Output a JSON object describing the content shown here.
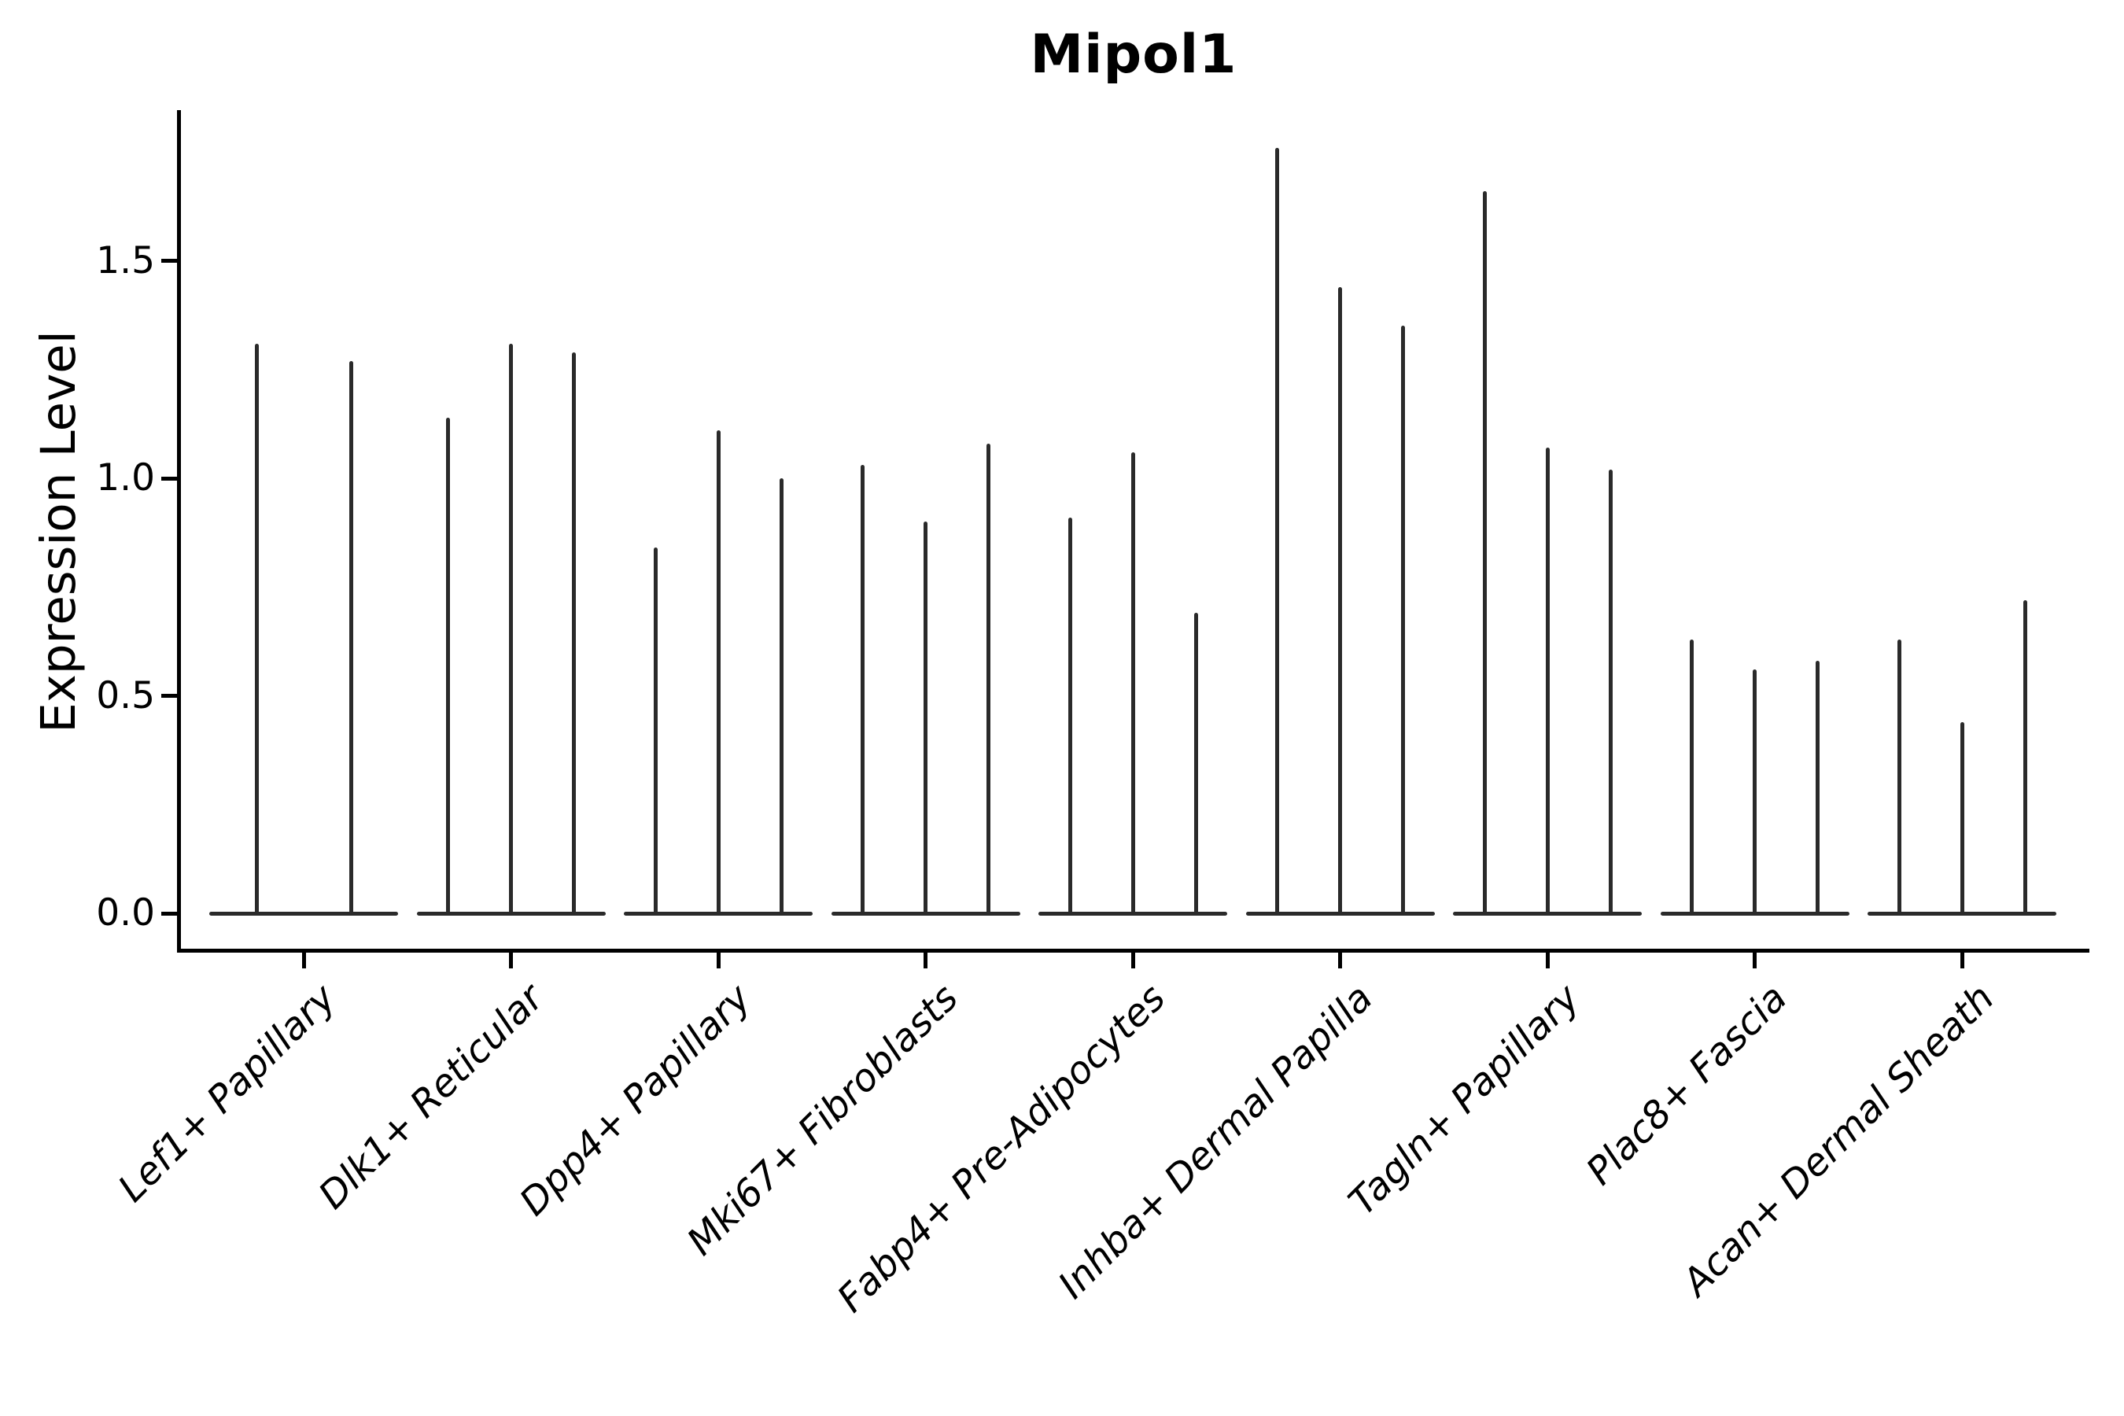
{
  "figure": {
    "title": "Mipol1",
    "y_axis": {
      "label": "Expression Level",
      "tick_labels": [
        "0.0",
        "0.5",
        "1.0",
        "1.5"
      ]
    }
  },
  "colors": {
    "violin": "#2a2a2a",
    "axis": "#000000",
    "text": "#000000",
    "background": "#ffffff"
  },
  "chart_data": {
    "type": "violin",
    "title": "Mipol1",
    "xlabel": "",
    "ylabel": "Expression Level",
    "ylim": [
      0,
      1.85
    ],
    "yticks": [
      0,
      0.5,
      1.0,
      1.5
    ],
    "ytick_labels": [
      "0.0",
      "0.5",
      "1.0",
      "1.5"
    ],
    "grid": false,
    "legend": null,
    "x_tick_rotation": 45,
    "shape_note": "Each violin is collapsed at 0 (flat base) with a thin vertical spike up to its maximum expression value",
    "groups": [
      {
        "label": "Lef1+ Papillary",
        "violin_peaks": [
          1.31,
          1.27
        ]
      },
      {
        "label": "Dlk1+ Reticular",
        "violin_peaks": [
          1.14,
          1.31,
          1.29
        ]
      },
      {
        "label": "Dpp4+ Papillary",
        "violin_peaks": [
          0.84,
          1.11,
          1.0
        ]
      },
      {
        "label": "Mki67+ Fibroblasts",
        "violin_peaks": [
          1.03,
          0.9,
          1.08
        ]
      },
      {
        "label": "Fabp4+ Pre-Adipocytes",
        "violin_peaks": [
          0.91,
          1.06,
          0.69
        ]
      },
      {
        "label": "Inhba+ Dermal Papilla",
        "violin_peaks": [
          1.76,
          1.44,
          1.35
        ]
      },
      {
        "label": "Tagln+ Papillary",
        "violin_peaks": [
          1.66,
          1.07,
          1.02
        ]
      },
      {
        "label": "Plac8+ Fascia",
        "violin_peaks": [
          0.63,
          0.56,
          0.58
        ]
      },
      {
        "label": "Acan+ Dermal Sheath",
        "violin_peaks": [
          0.63,
          0.44,
          0.72
        ]
      }
    ]
  }
}
